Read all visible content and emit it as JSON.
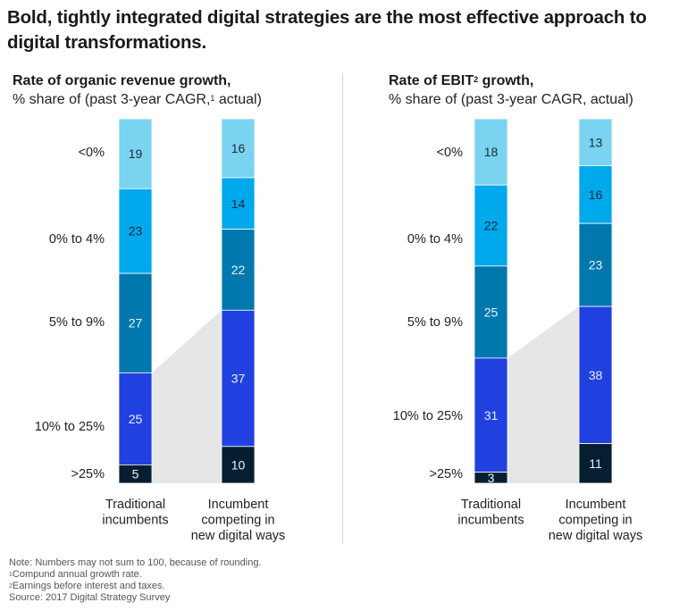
{
  "title": "Bold, tightly integrated digital strategies are the most effective approach to digital transformations.",
  "colors": {
    "lt0": "#7ad3f0",
    "0to4": "#00a8ec",
    "5to9": "#0078ad",
    "10to25": "#2140e0",
    "gt25": "#061f30",
    "connector": "#e6e6e6",
    "separator": "#d5d5d5"
  },
  "chart_data": [
    {
      "type": "bar",
      "stacked": true,
      "title": "Rate of organic revenue growth,",
      "subtitle_prefix": "% share of (past 3-year CAGR,",
      "subtitle_sup": "1",
      "subtitle_suffix": " actual)",
      "categories": [
        "Traditional incumbents",
        "Incumbent competing in new digital ways"
      ],
      "category_lines": [
        [
          "Traditional",
          "incumbents"
        ],
        [
          "Incumbent",
          "competing in",
          "new digital ways"
        ]
      ],
      "segments": [
        "<0%",
        "0% to 4%",
        "5% to 9%",
        "10% to 25%",
        ">25%"
      ],
      "series": [
        {
          "name": "<0%",
          "values": [
            19,
            16
          ]
        },
        {
          "name": "0% to 4%",
          "values": [
            23,
            14
          ]
        },
        {
          "name": "5% to 9%",
          "values": [
            27,
            22
          ]
        },
        {
          "name": "10% to 25%",
          "values": [
            25,
            37
          ]
        },
        {
          "name": ">25%",
          "values": [
            5,
            10
          ]
        }
      ]
    },
    {
      "type": "bar",
      "stacked": true,
      "title_prefix": "Rate of EBIT",
      "title_sup": "2",
      "title_suffix": " growth,",
      "subtitle": "% share of (past 3-year CAGR, actual)",
      "categories": [
        "Traditional incumbents",
        "Incumbent competing in new digital ways"
      ],
      "category_lines": [
        [
          "Traditional",
          "incumbents"
        ],
        [
          "Incumbent",
          "competing in",
          "new digital ways"
        ]
      ],
      "segments": [
        "<0%",
        "0% to 4%",
        "5% to 9%",
        "10% to 25%",
        ">25%"
      ],
      "series": [
        {
          "name": "<0%",
          "values": [
            18,
            13
          ]
        },
        {
          "name": "0% to 4%",
          "values": [
            22,
            16
          ]
        },
        {
          "name": "5% to 9%",
          "values": [
            25,
            23
          ]
        },
        {
          "name": "10% to 25%",
          "values": [
            31,
            38
          ]
        },
        {
          "name": ">25%",
          "values": [
            3,
            11
          ]
        }
      ]
    }
  ],
  "notes": {
    "note": "Note: Numbers may not sum to 100, because of rounding.",
    "fn1_sup": "1",
    "fn1": "Compund annual growth rate.",
    "fn2_sup": "2",
    "fn2": "Earnings before interest and taxes.",
    "source": "Source: 2017 Digital Strategy Survey"
  }
}
